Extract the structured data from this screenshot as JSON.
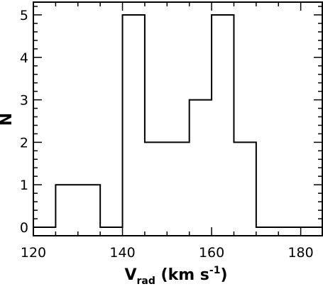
{
  "chart_data": {
    "type": "bar",
    "style": "step-histogram",
    "bins": [
      {
        "x0": 120,
        "x1": 125,
        "count": 0
      },
      {
        "x0": 125,
        "x1": 130,
        "count": 1
      },
      {
        "x0": 130,
        "x1": 135,
        "count": 1
      },
      {
        "x0": 135,
        "x1": 140,
        "count": 0
      },
      {
        "x0": 140,
        "x1": 145,
        "count": 5
      },
      {
        "x0": 145,
        "x1": 150,
        "count": 2
      },
      {
        "x0": 150,
        "x1": 155,
        "count": 2
      },
      {
        "x0": 155,
        "x1": 160,
        "count": 3
      },
      {
        "x0": 160,
        "x1": 165,
        "count": 5
      },
      {
        "x0": 165,
        "x1": 170,
        "count": 2
      },
      {
        "x0": 170,
        "x1": 175,
        "count": 0
      },
      {
        "x0": 175,
        "x1": 180,
        "count": 0
      },
      {
        "x0": 180,
        "x1": 185,
        "count": 0
      }
    ],
    "xlabel": {
      "main": "V",
      "sub": "rad",
      "unit": " (km s",
      "sup": "-1",
      "close": ")"
    },
    "ylabel": "N",
    "xlim": [
      120,
      185
    ],
    "ylim": [
      -0.2,
      5.3
    ],
    "xticks_major": [
      120,
      140,
      160,
      180
    ],
    "xticks_minor": [
      125,
      130,
      135,
      145,
      150,
      155,
      165,
      170,
      175,
      185
    ],
    "yticks_major": [
      0,
      1,
      2,
      3,
      4,
      5
    ],
    "yticks_minor_step": 0.2,
    "grid": false,
    "line_color": "#000000"
  }
}
